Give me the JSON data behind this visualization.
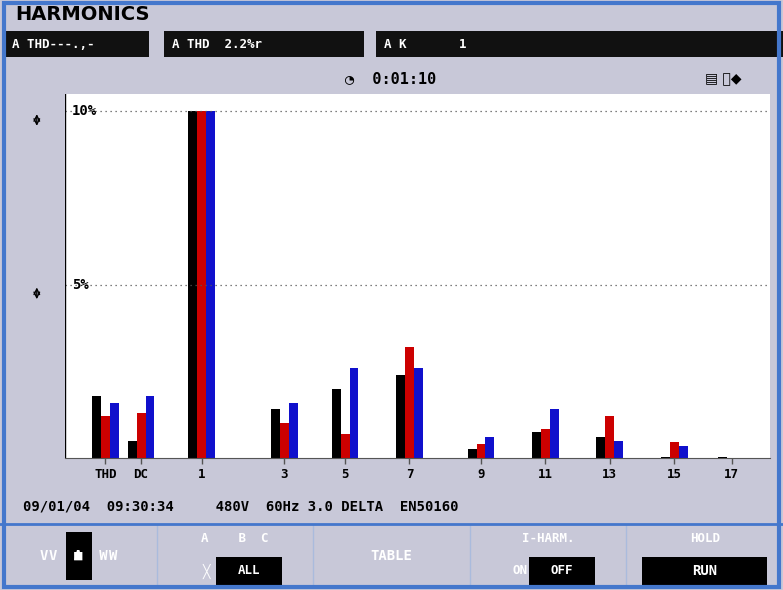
{
  "title": "HARMONICS",
  "header_left": "A THD---.,-",
  "header_mid": "A THD  2.2%r",
  "header_right": "A K       1",
  "time_label": "0:01:10",
  "footer": "09/01/04  09:30:34     480V  60Hz 3.0 DELTA  EN50160",
  "bg_color": "#c8c8d8",
  "header_bg": "#c8c8d8",
  "plot_bg": "#ffffff",
  "bar_colors": [
    "#000000",
    "#cc0000",
    "#1010cc"
  ],
  "categories": [
    "THD",
    "DC",
    "1",
    "3",
    "5",
    "7",
    "9",
    "11",
    "13",
    "15",
    "17"
  ],
  "x_positions": [
    0.5,
    1.5,
    3.2,
    5.5,
    7.2,
    9.0,
    11.0,
    12.8,
    14.6,
    16.4,
    18.0
  ],
  "data_black": [
    1.8,
    0.5,
    10.0,
    1.4,
    2.0,
    2.4,
    0.25,
    0.75,
    0.6,
    0.04,
    0.04
  ],
  "data_red": [
    1.2,
    1.3,
    10.0,
    1.0,
    0.7,
    3.2,
    0.4,
    0.85,
    1.2,
    0.45,
    0.0
  ],
  "data_blue": [
    1.6,
    1.8,
    10.0,
    1.6,
    2.6,
    2.6,
    0.6,
    1.4,
    0.5,
    0.35,
    0.0
  ],
  "ylim_max": 10.5,
  "dotted_lines": [
    5.0,
    10.0
  ],
  "bar_width": 0.25,
  "border_color": "#4477cc",
  "bottom_bar_color": "#5588cc",
  "plot_border_color": "#4477cc"
}
